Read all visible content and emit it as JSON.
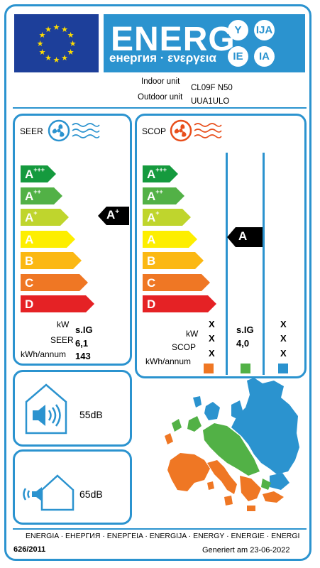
{
  "header": {
    "energy_word": "ENERG",
    "energy_subtitle": "енергия · ενεργεια",
    "badges": [
      "Y",
      "IJA",
      "IE",
      "IA"
    ]
  },
  "units": {
    "indoor_label": "Indoor unit",
    "indoor_value": "CL09F N50",
    "outdoor_label": "Outdoor unit",
    "outdoor_value": "UUA1ULO"
  },
  "seer_panel": {
    "title": "SEER",
    "classes": [
      {
        "letter": "A",
        "sup": "+++",
        "color": "#159a3e"
      },
      {
        "letter": "A",
        "sup": "++",
        "color": "#52b146"
      },
      {
        "letter": "A",
        "sup": "+",
        "color": "#bfd52d"
      },
      {
        "letter": "A",
        "sup": "",
        "color": "#fdee00"
      },
      {
        "letter": "B",
        "sup": "",
        "color": "#fbb813"
      },
      {
        "letter": "C",
        "sup": "",
        "color": "#ef7724"
      },
      {
        "letter": "D",
        "sup": "",
        "color": "#e52225"
      }
    ],
    "indicator": {
      "letter": "A",
      "sup": "+"
    },
    "kw_label": "kW",
    "kw_value": "s.IG",
    "seer_label": "SEER",
    "seer_value": "6,1",
    "kwh_label": "kWh/annum",
    "kwh_value": "143"
  },
  "scop_panel": {
    "title": "SCOP",
    "classes": [
      {
        "letter": "A",
        "sup": "+++",
        "color": "#159a3e"
      },
      {
        "letter": "A",
        "sup": "++",
        "color": "#52b146"
      },
      {
        "letter": "A",
        "sup": "+",
        "color": "#bfd52d"
      },
      {
        "letter": "A",
        "sup": "",
        "color": "#fdee00"
      },
      {
        "letter": "B",
        "sup": "",
        "color": "#fbb813"
      },
      {
        "letter": "C",
        "sup": "",
        "color": "#ef7724"
      },
      {
        "letter": "D",
        "sup": "",
        "color": "#e52225"
      }
    ],
    "indicator": {
      "letter": "A",
      "sup": ""
    },
    "kw_label": "kW",
    "scop_label": "SCOP",
    "kwh_label": "kWh/annum",
    "col1": {
      "kw": "X",
      "scop": "X",
      "kwh": "X",
      "color": "#ef7724"
    },
    "col2": {
      "kw": "s.IG",
      "scop": "4,0",
      "kwh": "",
      "color": "#52b146"
    },
    "col3": {
      "kw": "X",
      "scop": "X",
      "kwh": "X",
      "color": "#2b93cf"
    }
  },
  "noise": {
    "indoor_db": "55dB",
    "outdoor_db": "65dB"
  },
  "footer": {
    "languages": "ENERGIA · ЕНЕРГИЯ · ΕΝΕΡΓΕΙΑ · ENERGIJA · ENERGY · ENERGIE · ENERGI",
    "regulation": "626/2011",
    "generated": "Generiert am 23-06-2022"
  },
  "colors": {
    "frame_blue": "#2b93cf",
    "eu_blue": "#1d3f9a",
    "star_yellow": "#ffdd00",
    "map_orange": "#ef7724",
    "map_green": "#52b146",
    "map_blue": "#2b93cf"
  }
}
